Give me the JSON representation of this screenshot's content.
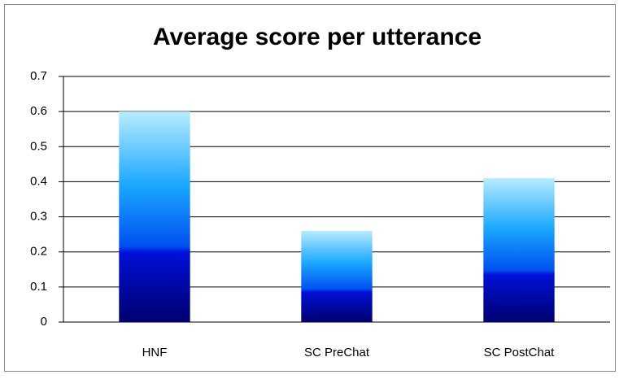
{
  "chart_data": {
    "type": "bar",
    "title": "Average score per utterance",
    "categories": [
      "HNF",
      "SC PreChat",
      "SC PostChat"
    ],
    "values": [
      0.6,
      0.26,
      0.41
    ],
    "ylim": [
      0,
      0.7
    ],
    "yticks": [
      0,
      0.1,
      0.2,
      0.3,
      0.4,
      0.5,
      0.6,
      0.7
    ],
    "grid": true
  }
}
